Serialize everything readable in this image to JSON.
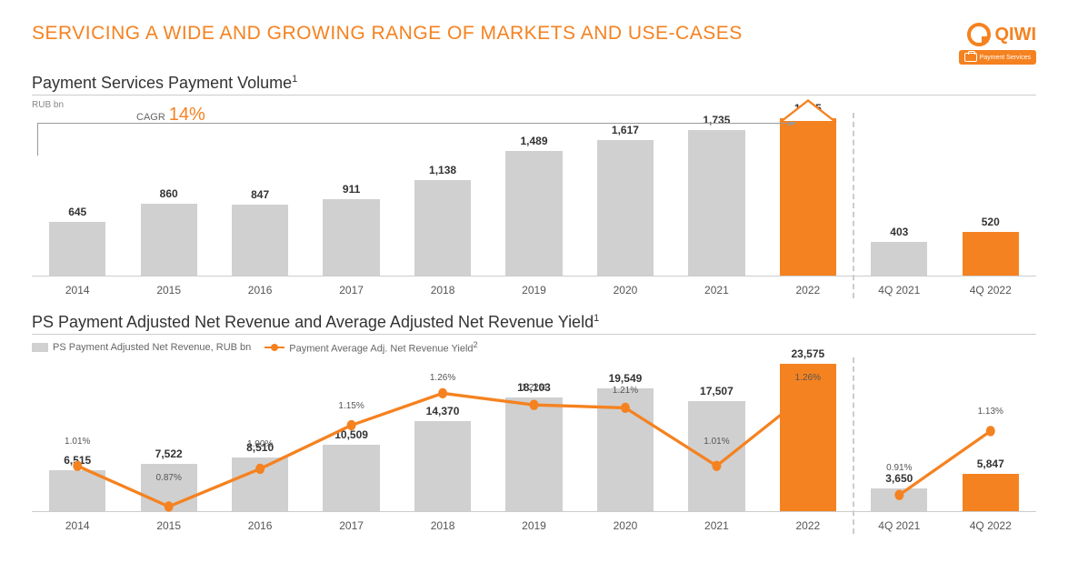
{
  "header": {
    "title": "SERVICING A WIDE AND GROWING RANGE OF MARKETS AND USE-CASES",
    "logo_text": "QIWI",
    "badge_text": "Payment Services"
  },
  "colors": {
    "accent": "#f58220",
    "bar_default": "#d0d0d0",
    "text_dark": "#333333",
    "text_muted": "#888888"
  },
  "chart1": {
    "title": "Payment Services Payment Volume",
    "title_sup": "1",
    "axis_label": "RUB bn",
    "cagr_label": "CAGR",
    "cagr_value": "14%",
    "ymax": 1900,
    "separator_after_index": 8,
    "arrow_span_bars": 9,
    "big_arrow_bar_index": 8,
    "bars": [
      {
        "label": "2014",
        "value": 645,
        "display": "645",
        "highlight": false
      },
      {
        "label": "2015",
        "value": 860,
        "display": "860",
        "highlight": false
      },
      {
        "label": "2016",
        "value": 847,
        "display": "847",
        "highlight": false
      },
      {
        "label": "2017",
        "value": 911,
        "display": "911",
        "highlight": false
      },
      {
        "label": "2018",
        "value": 1138,
        "display": "1,138",
        "highlight": false
      },
      {
        "label": "2019",
        "value": 1489,
        "display": "1,489",
        "highlight": false
      },
      {
        "label": "2020",
        "value": 1617,
        "display": "1,617",
        "highlight": false
      },
      {
        "label": "2021",
        "value": 1735,
        "display": "1,735",
        "highlight": false
      },
      {
        "label": "2022",
        "value": 1875,
        "display": "1,875",
        "highlight": true
      },
      {
        "label": "4Q 2021",
        "value": 403,
        "display": "403",
        "highlight": false
      },
      {
        "label": "4Q 2022",
        "value": 520,
        "display": "520",
        "highlight": true
      }
    ]
  },
  "chart2": {
    "title": "PS Payment Adjusted Net Revenue and Average Adjusted Net Revenue Yield",
    "title_sup": "1",
    "legend_bar": "PS Payment Adjusted Net Revenue, RUB bn",
    "legend_line": "Payment Average Adj. Net Revenue Yield",
    "legend_line_sup": "2",
    "ymax": 24000,
    "yield_min": 0.8,
    "yield_max": 1.35,
    "separator_after_index": 8,
    "bars": [
      {
        "label": "2014",
        "value": 6515,
        "display": "6,515",
        "highlight": false,
        "yield": 1.01,
        "yield_display": "1.01%"
      },
      {
        "label": "2015",
        "value": 7522,
        "display": "7,522",
        "highlight": false,
        "yield": 0.87,
        "yield_display": "0.87%"
      },
      {
        "label": "2016",
        "value": 8510,
        "display": "8,510",
        "highlight": false,
        "yield": 1.0,
        "yield_display": "1.00%"
      },
      {
        "label": "2017",
        "value": 10509,
        "display": "10,509",
        "highlight": false,
        "yield": 1.15,
        "yield_display": "1.15%"
      },
      {
        "label": "2018",
        "value": 14370,
        "display": "14,370",
        "highlight": false,
        "yield": 1.26,
        "yield_display": "1.26%"
      },
      {
        "label": "2019",
        "value": 18103,
        "display": "18,103",
        "highlight": false,
        "yield": 1.22,
        "yield_display": "1.22%"
      },
      {
        "label": "2020",
        "value": 19549,
        "display": "19,549",
        "highlight": false,
        "yield": 1.21,
        "yield_display": "1.21%"
      },
      {
        "label": "2021",
        "value": 17507,
        "display": "17,507",
        "highlight": false,
        "yield": 1.01,
        "yield_display": "1.01%"
      },
      {
        "label": "2022",
        "value": 23575,
        "display": "23,575",
        "highlight": true,
        "yield": 1.26,
        "yield_display": "1.26%"
      },
      {
        "label": "4Q 2021",
        "value": 3650,
        "display": "3,650",
        "highlight": false,
        "yield": 0.91,
        "yield_display": "0.91%"
      },
      {
        "label": "4Q 2022",
        "value": 5847,
        "display": "5,847",
        "highlight": true,
        "yield": 1.13,
        "yield_display": "1.13%"
      }
    ]
  }
}
